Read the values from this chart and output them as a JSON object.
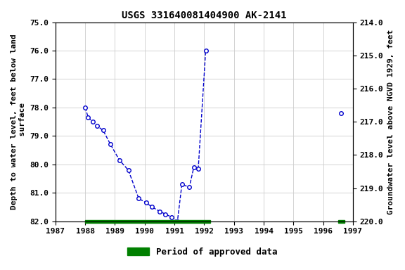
{
  "title": "USGS 331640081404900 AK-2141",
  "ylabel_left": "Depth to water level, feet below land\n surface",
  "ylabel_right": "Groundwater level above NGVD 1929, feet",
  "background_color": "#ffffff",
  "plot_bg_color": "#ffffff",
  "grid_color": "#cccccc",
  "ylim_left": [
    75.0,
    82.0
  ],
  "ylim_right": [
    214.0,
    220.0
  ],
  "xlim": [
    1987,
    1997
  ],
  "xticks": [
    1987,
    1988,
    1989,
    1990,
    1991,
    1992,
    1993,
    1994,
    1995,
    1996,
    1997
  ],
  "yticks_left": [
    75.0,
    76.0,
    77.0,
    78.0,
    79.0,
    80.0,
    81.0,
    82.0
  ],
  "yticks_right": [
    220.0,
    219.0,
    218.0,
    217.0,
    216.0,
    215.0,
    214.0
  ],
  "segments": [
    {
      "x": [
        1988.0,
        1988.1,
        1988.25,
        1988.4,
        1988.6,
        1988.85,
        1989.15,
        1989.45,
        1989.8,
        1990.05,
        1990.25,
        1990.5,
        1990.7,
        1990.9,
        1991.1,
        1991.25,
        1991.5,
        1991.65,
        1991.8,
        1992.05
      ],
      "y": [
        78.0,
        78.35,
        78.5,
        78.65,
        78.8,
        79.3,
        79.85,
        80.2,
        81.2,
        81.35,
        81.5,
        81.65,
        81.75,
        81.85,
        82.0,
        80.7,
        80.8,
        80.1,
        80.15,
        76.0
      ]
    },
    {
      "x": [
        1996.6
      ],
      "y": [
        78.2
      ]
    }
  ],
  "marker_color": "#0000cc",
  "line_color": "#0000cc",
  "line_style": "--",
  "marker_style": "o",
  "marker_size": 4,
  "marker_linewidth": 1.0,
  "line_width": 1.0,
  "approved_bars": [
    {
      "x_start": 1988.0,
      "x_end": 1992.2,
      "color": "#008000"
    },
    {
      "x_start": 1996.5,
      "x_end": 1996.72,
      "color": "#008000"
    }
  ],
  "bar_thickness": 0.1,
  "legend_label": "Period of approved data",
  "legend_color": "#008000",
  "title_fontsize": 10,
  "axis_label_fontsize": 8,
  "tick_fontsize": 8
}
